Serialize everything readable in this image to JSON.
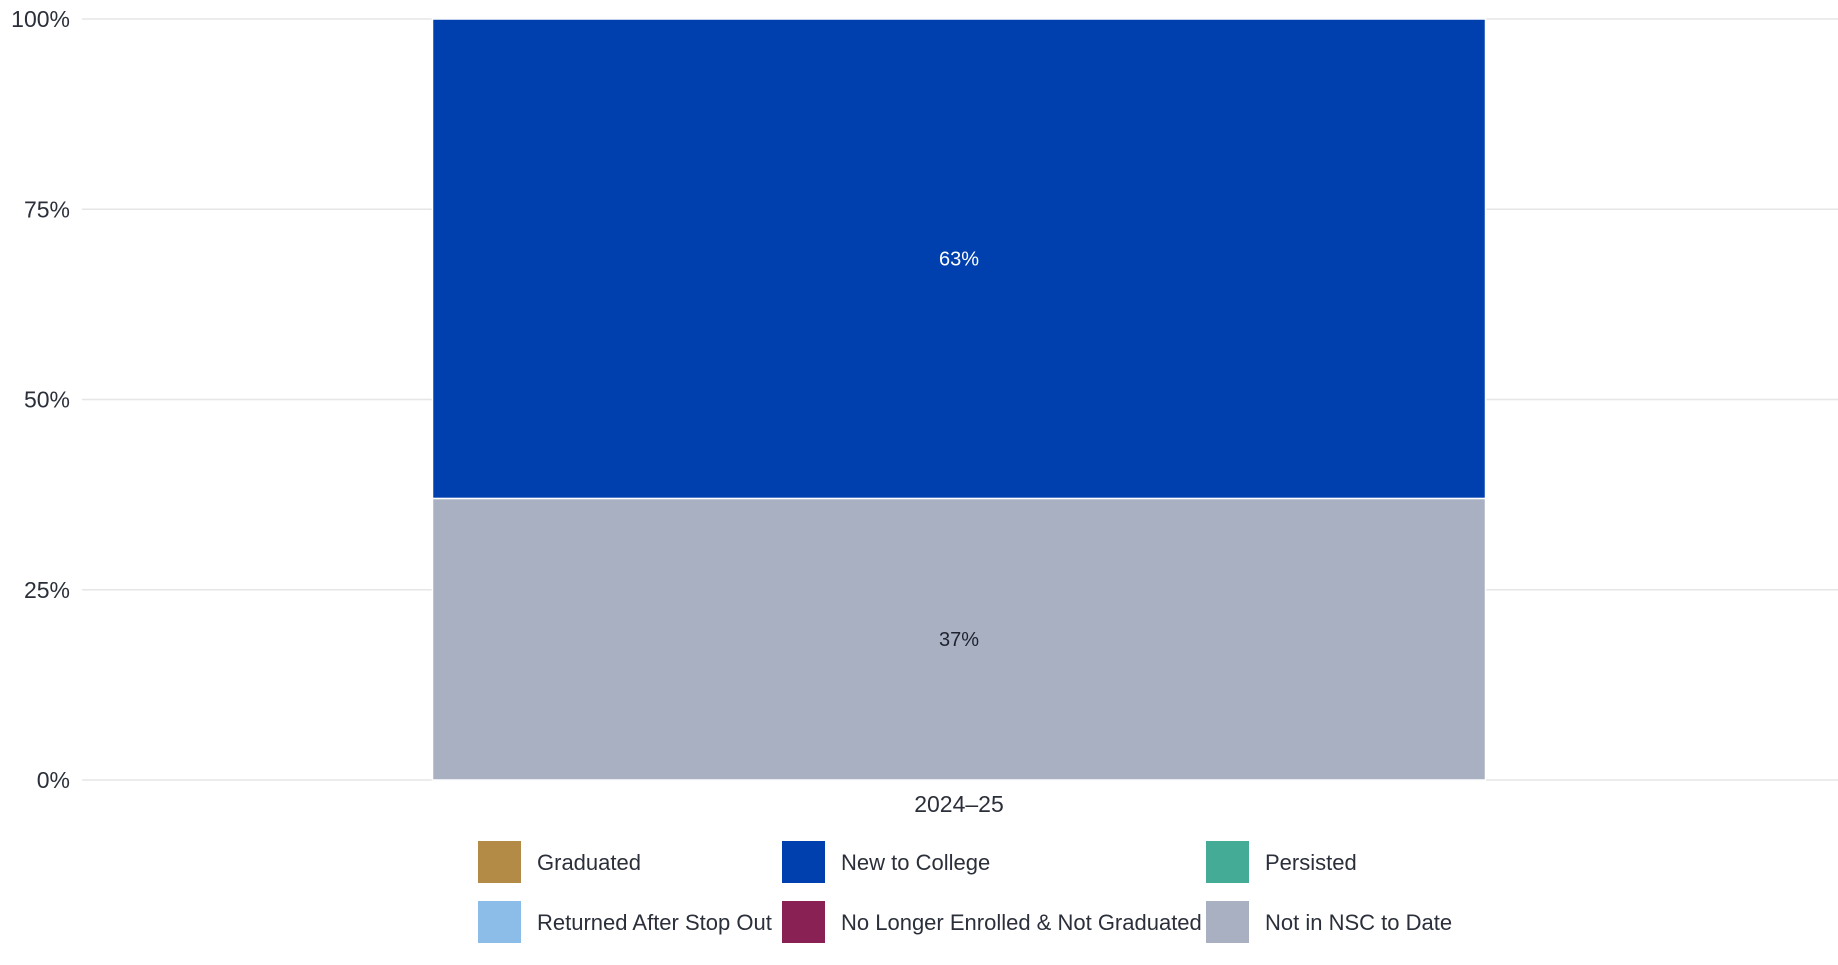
{
  "chart_data": {
    "type": "bar",
    "stacked": true,
    "categories": [
      "2024–25"
    ],
    "y_ticks": [
      "0%",
      "25%",
      "50%",
      "75%",
      "100%"
    ],
    "ylim": [
      0,
      100
    ],
    "grid": true,
    "legend_position": "bottom",
    "series": [
      {
        "name": "Graduated",
        "color": "#b38b46",
        "values": [
          0
        ]
      },
      {
        "name": "New to College",
        "color": "#003fae",
        "values": [
          63
        ],
        "label": "63%"
      },
      {
        "name": "Persisted",
        "color": "#44ab96",
        "values": [
          0
        ]
      },
      {
        "name": "Returned After Stop Out",
        "color": "#8bbde8",
        "values": [
          0
        ]
      },
      {
        "name": "No Longer Enrolled & Not Graduated",
        "color": "#8a2154",
        "values": [
          0
        ]
      },
      {
        "name": "Not in NSC to Date",
        "color": "#a8b0c2",
        "values": [
          37
        ],
        "label": "37%"
      }
    ],
    "stack_order_bottom_to_top": [
      "Not in NSC to Date",
      "New to College"
    ]
  }
}
